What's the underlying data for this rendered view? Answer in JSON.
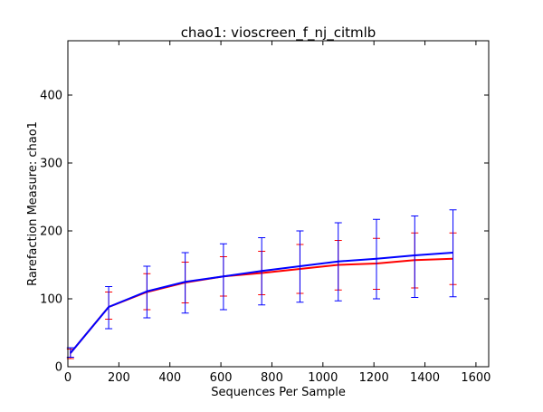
{
  "chart_data": {
    "type": "line",
    "title": "chao1: vioscreen_f_nj_citmlb",
    "xlabel": "Sequences Per Sample",
    "ylabel": "Rarefaction Measure: chao1",
    "xlim": [
      0,
      1650
    ],
    "ylim": [
      0,
      480
    ],
    "xticks": [
      0,
      200,
      400,
      600,
      800,
      1000,
      1200,
      1400,
      1600
    ],
    "yticks": [
      0,
      100,
      200,
      300,
      400
    ],
    "grid": false,
    "x": [
      10,
      160,
      310,
      460,
      610,
      760,
      910,
      1060,
      1210,
      1360,
      1510
    ],
    "series": [
      {
        "color": "#ff0000",
        "values": [
          20,
          88,
          110,
          124,
          133,
          138,
          144,
          150,
          152,
          157,
          159
        ],
        "err_low": [
          12,
          70,
          84,
          94,
          104,
          106,
          108,
          113,
          114,
          116,
          121
        ],
        "err_high": [
          26,
          110,
          137,
          154,
          162,
          170,
          180,
          186,
          189,
          197,
          197
        ]
      },
      {
        "color": "#0000ff",
        "values": [
          20,
          88,
          111,
          125,
          133,
          141,
          148,
          155,
          159,
          164,
          168
        ],
        "err_low": [
          14,
          56,
          72,
          79,
          84,
          91,
          95,
          97,
          100,
          102,
          103
        ],
        "err_high": [
          28,
          118,
          148,
          168,
          181,
          190,
          200,
          212,
          217,
          222,
          231
        ]
      }
    ]
  }
}
